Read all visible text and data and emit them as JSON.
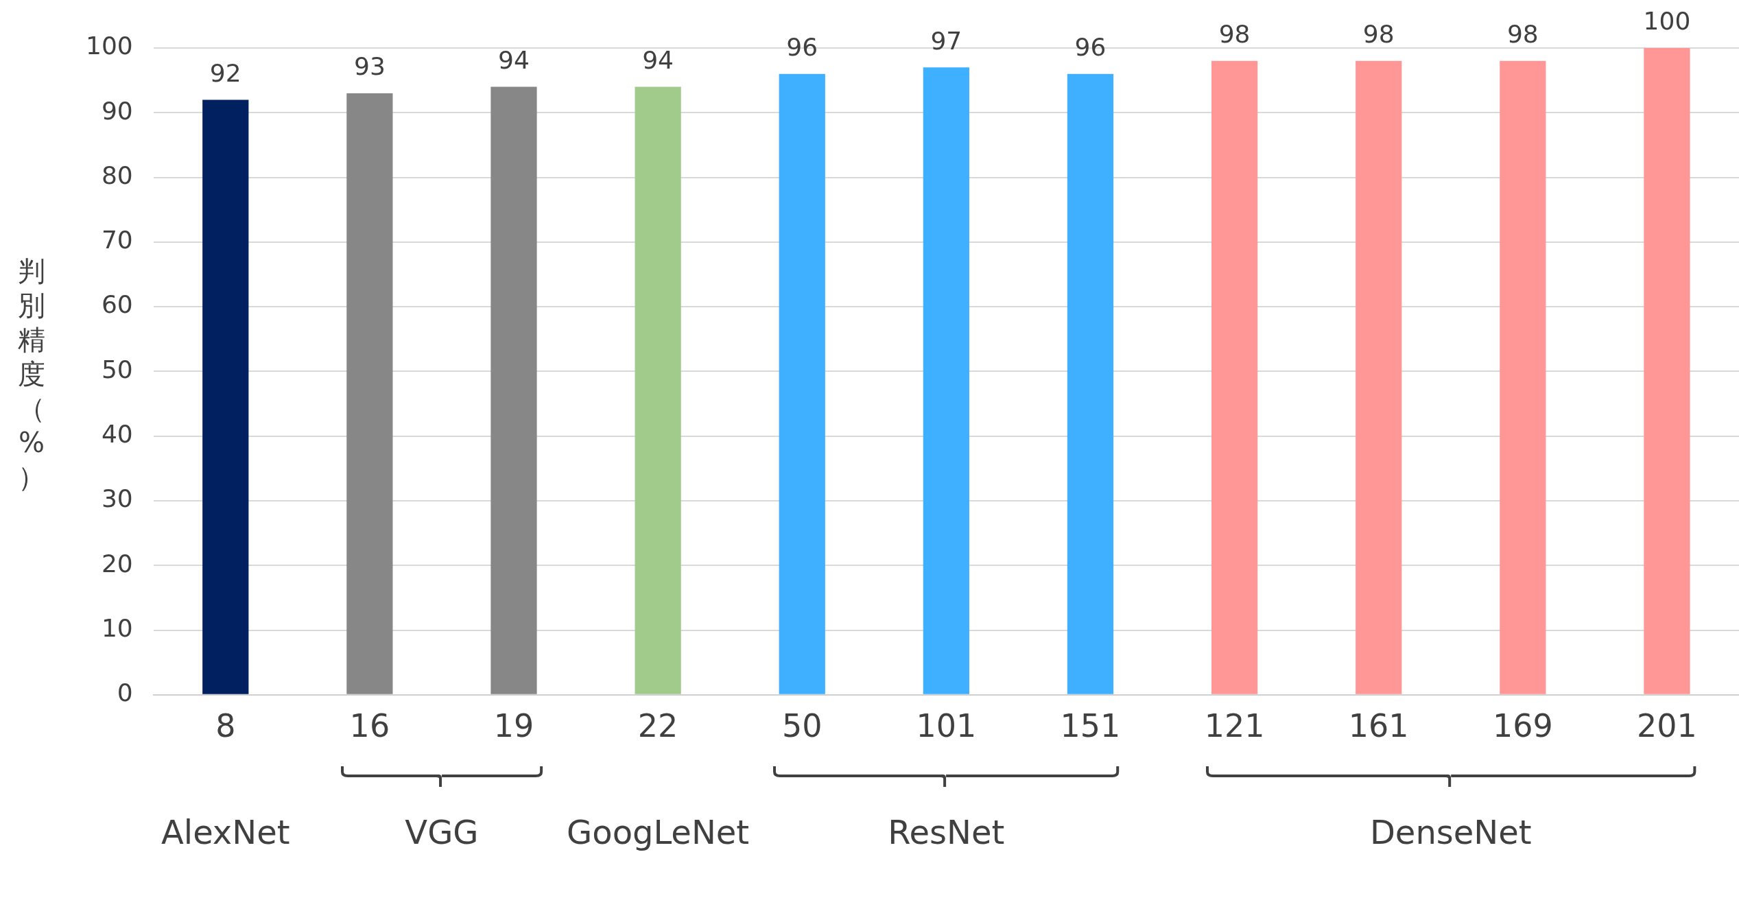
{
  "chart_data": {
    "type": "bar",
    "ylabel": "判別精度（%）",
    "categories": [
      "8",
      "16",
      "19",
      "22",
      "50",
      "101",
      "151",
      "121",
      "161",
      "169",
      "201"
    ],
    "values": [
      92,
      93,
      94,
      94,
      96,
      97,
      96,
      98,
      98,
      98,
      100
    ],
    "colors": [
      "#002060",
      "#878787",
      "#878787",
      "#a0cb8a",
      "#3fb0ff",
      "#3fb0ff",
      "#3fb0ff",
      "#ff9797",
      "#ff9797",
      "#ff9797",
      "#ff9797"
    ],
    "ylim": [
      0,
      100
    ],
    "yticks": [
      0,
      10,
      20,
      30,
      40,
      50,
      60,
      70,
      80,
      90,
      100
    ],
    "grid": "y",
    "legend": false,
    "data_labels": true,
    "annotations": [
      "AlexNet",
      "VGG",
      "GoogLeNet",
      "ResNet",
      "DenseNet"
    ]
  }
}
